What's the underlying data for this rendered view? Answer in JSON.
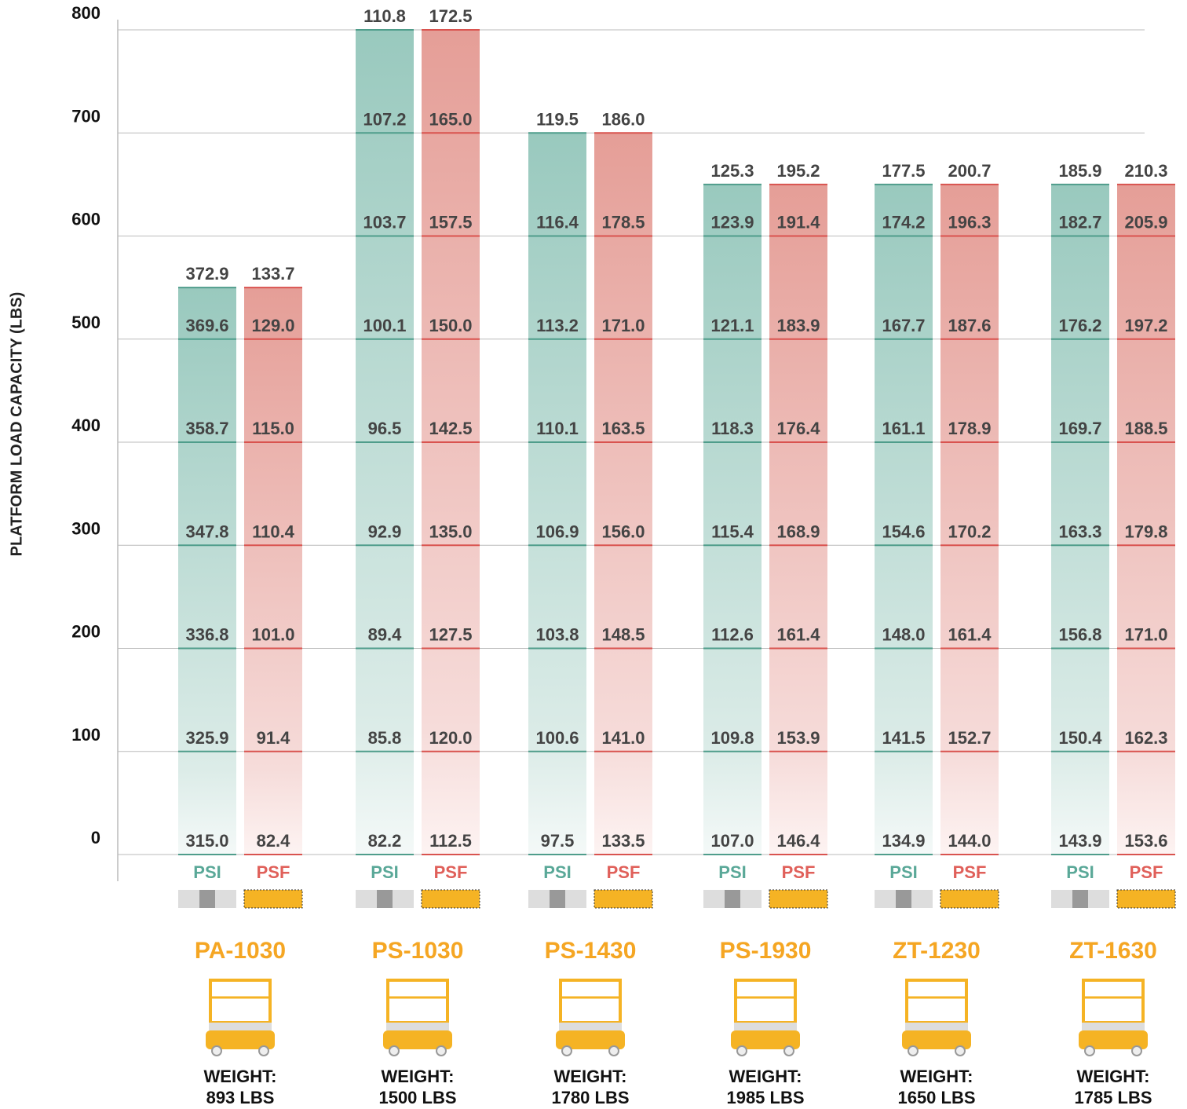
{
  "chart_data": {
    "type": "bar",
    "y_label": "PLATFORM LOAD CAPACITY (LBS)",
    "ylim": [
      0,
      800
    ],
    "yticks": [
      0,
      100,
      200,
      300,
      400,
      500,
      600,
      700,
      800
    ],
    "grid": true,
    "series": [
      {
        "name": "PSI",
        "color": "#5aa898"
      },
      {
        "name": "PSF",
        "color": "#e0605a"
      }
    ],
    "weight_label": "WEIGHT:",
    "models": [
      {
        "name": "PA-1030",
        "capacity": 550,
        "weight": "893 LBS",
        "psi": [
          "315.0",
          "325.9",
          "336.8",
          "347.8",
          "358.7",
          "369.6",
          "372.9"
        ],
        "psf": [
          "82.4",
          "91.4",
          "101.0",
          "110.4",
          "115.0",
          "129.0",
          "133.7"
        ]
      },
      {
        "name": "PS-1030",
        "capacity": 800,
        "weight": "1500 LBS",
        "psi": [
          "82.2",
          "85.8",
          "89.4",
          "92.9",
          "96.5",
          "100.1",
          "103.7",
          "107.2",
          "110.8"
        ],
        "psf": [
          "112.5",
          "120.0",
          "127.5",
          "135.0",
          "142.5",
          "150.0",
          "157.5",
          "165.0",
          "172.5"
        ]
      },
      {
        "name": "PS-1430",
        "capacity": 700,
        "weight": "1780 LBS",
        "psi": [
          "97.5",
          "100.6",
          "103.8",
          "106.9",
          "110.1",
          "113.2",
          "116.4",
          "119.5"
        ],
        "psf": [
          "133.5",
          "141.0",
          "148.5",
          "156.0",
          "163.5",
          "171.0",
          "178.5",
          "186.0"
        ]
      },
      {
        "name": "PS-1930",
        "capacity": 650,
        "weight": "1985 LBS",
        "psi": [
          "107.0",
          "109.8",
          "112.6",
          "115.4",
          "118.3",
          "121.1",
          "123.9",
          "125.3"
        ],
        "psf": [
          "146.4",
          "153.9",
          "161.4",
          "168.9",
          "176.4",
          "183.9",
          "191.4",
          "195.2"
        ]
      },
      {
        "name": "ZT-1230",
        "capacity": 650,
        "weight": "1650 LBS",
        "psi": [
          "134.9",
          "141.5",
          "148.0",
          "154.6",
          "161.1",
          "167.7",
          "174.2",
          "177.5"
        ],
        "psf": [
          "144.0",
          "152.7",
          "161.4",
          "170.2",
          "178.9",
          "187.6",
          "196.3",
          "200.7"
        ]
      },
      {
        "name": "ZT-1630",
        "capacity": 650,
        "weight": "1785 LBS",
        "psi": [
          "143.9",
          "150.4",
          "156.8",
          "163.3",
          "169.7",
          "176.2",
          "182.7",
          "185.9"
        ],
        "psf": [
          "153.6",
          "162.3",
          "171.0",
          "179.8",
          "188.5",
          "197.2",
          "205.9",
          "210.3"
        ]
      }
    ]
  }
}
